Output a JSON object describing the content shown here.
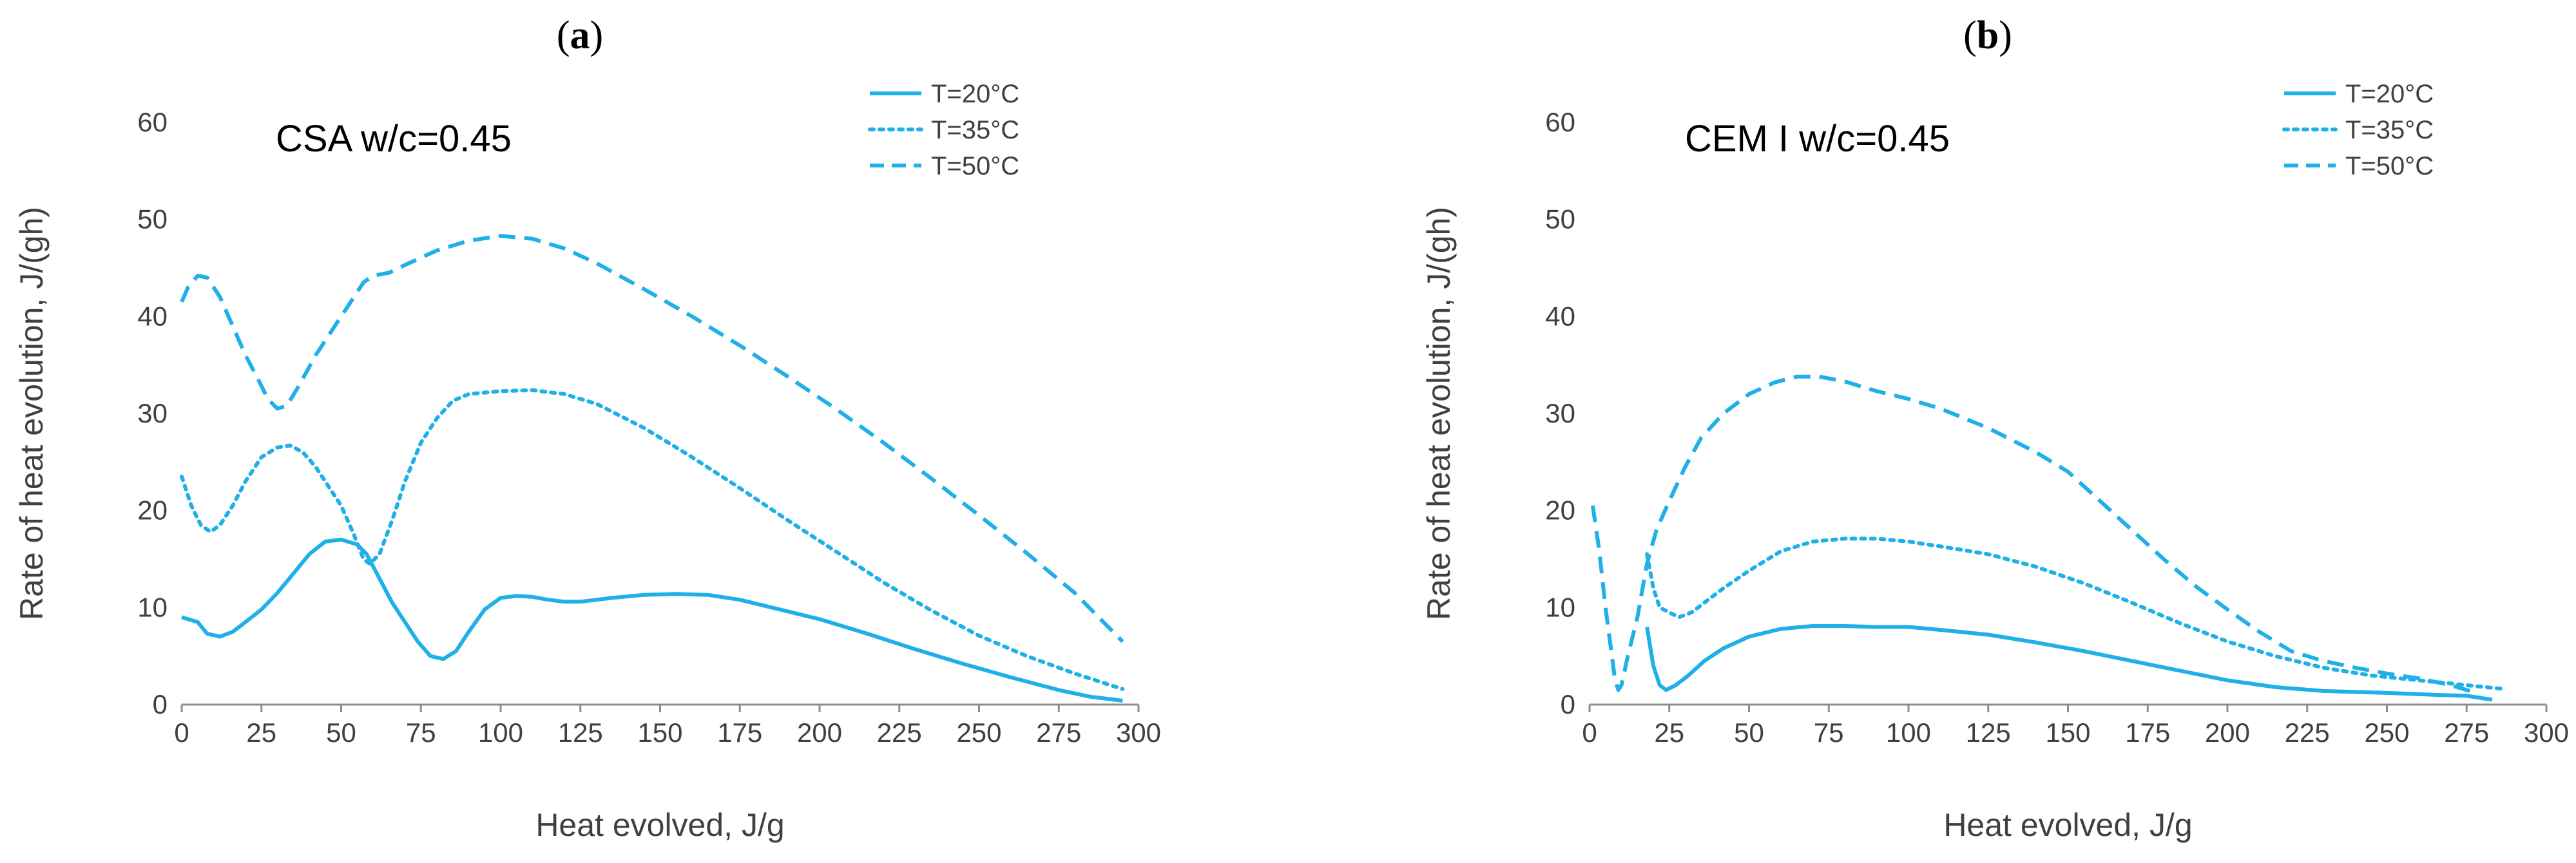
{
  "chart_data": [
    {
      "type": "line",
      "panel_label": "a",
      "title": "CSA w/c=0.45",
      "xlabel": "Heat evolved, J/g",
      "ylabel": "Rate of heat evolution, J/(gh)",
      "xlim": [
        0,
        300
      ],
      "ylim": [
        0,
        60
      ],
      "xticks": [
        0,
        25,
        50,
        75,
        100,
        125,
        150,
        175,
        200,
        225,
        250,
        275,
        300
      ],
      "yticks": [
        0,
        10,
        20,
        30,
        40,
        50,
        60
      ],
      "legend_position": "top-right",
      "color": "#1fb0e8",
      "series": [
        {
          "name": "T=20°C",
          "style": "solid",
          "points": [
            [
              0,
              9.0
            ],
            [
              5,
              8.5
            ],
            [
              8,
              7.3
            ],
            [
              12,
              7.0
            ],
            [
              16,
              7.5
            ],
            [
              20,
              8.5
            ],
            [
              25,
              9.8
            ],
            [
              30,
              11.5
            ],
            [
              35,
              13.5
            ],
            [
              40,
              15.5
            ],
            [
              45,
              16.8
            ],
            [
              50,
              17.0
            ],
            [
              55,
              16.5
            ],
            [
              58,
              15.5
            ],
            [
              62,
              13.0
            ],
            [
              66,
              10.5
            ],
            [
              70,
              8.5
            ],
            [
              74,
              6.5
            ],
            [
              78,
              5.0
            ],
            [
              82,
              4.7
            ],
            [
              86,
              5.5
            ],
            [
              90,
              7.5
            ],
            [
              95,
              9.8
            ],
            [
              100,
              11.0
            ],
            [
              105,
              11.2
            ],
            [
              110,
              11.1
            ],
            [
              115,
              10.8
            ],
            [
              120,
              10.6
            ],
            [
              125,
              10.6
            ],
            [
              135,
              11.0
            ],
            [
              145,
              11.3
            ],
            [
              155,
              11.4
            ],
            [
              165,
              11.3
            ],
            [
              175,
              10.8
            ],
            [
              185,
              10.0
            ],
            [
              200,
              8.8
            ],
            [
              215,
              7.3
            ],
            [
              230,
              5.7
            ],
            [
              245,
              4.2
            ],
            [
              260,
              2.8
            ],
            [
              275,
              1.5
            ],
            [
              285,
              0.8
            ],
            [
              295,
              0.4
            ]
          ]
        },
        {
          "name": "T=35°C",
          "style": "dotted",
          "points": [
            [
              0,
              23.5
            ],
            [
              3,
              20.5
            ],
            [
              6,
              18.5
            ],
            [
              9,
              17.8
            ],
            [
              12,
              18.5
            ],
            [
              16,
              20.5
            ],
            [
              20,
              23.0
            ],
            [
              25,
              25.5
            ],
            [
              30,
              26.5
            ],
            [
              34,
              26.7
            ],
            [
              38,
              26.0
            ],
            [
              42,
              24.5
            ],
            [
              46,
              22.5
            ],
            [
              50,
              20.5
            ],
            [
              54,
              17.5
            ],
            [
              57,
              15.0
            ],
            [
              59,
              14.5
            ],
            [
              62,
              15.5
            ],
            [
              66,
              19.0
            ],
            [
              70,
              23.0
            ],
            [
              75,
              27.0
            ],
            [
              80,
              29.5
            ],
            [
              85,
              31.3
            ],
            [
              90,
              32.0
            ],
            [
              100,
              32.3
            ],
            [
              110,
              32.4
            ],
            [
              120,
              32.0
            ],
            [
              130,
              31.0
            ],
            [
              145,
              28.5
            ],
            [
              160,
              25.5
            ],
            [
              175,
              22.3
            ],
            [
              190,
              19.0
            ],
            [
              205,
              15.8
            ],
            [
              220,
              12.6
            ],
            [
              235,
              9.7
            ],
            [
              250,
              7.1
            ],
            [
              265,
              5.0
            ],
            [
              280,
              3.2
            ],
            [
              295,
              1.6
            ]
          ]
        },
        {
          "name": "T=50°C",
          "style": "dashed",
          "points": [
            [
              0,
              41.5
            ],
            [
              2,
              43.0
            ],
            [
              5,
              44.2
            ],
            [
              8,
              44.0
            ],
            [
              12,
              42.0
            ],
            [
              16,
              39.0
            ],
            [
              20,
              36.0
            ],
            [
              24,
              33.5
            ],
            [
              27,
              31.5
            ],
            [
              30,
              30.5
            ],
            [
              33,
              30.8
            ],
            [
              37,
              33.0
            ],
            [
              42,
              36.0
            ],
            [
              48,
              39.0
            ],
            [
              53,
              41.5
            ],
            [
              57,
              43.5
            ],
            [
              60,
              44.2
            ],
            [
              65,
              44.5
            ],
            [
              70,
              45.3
            ],
            [
              80,
              46.8
            ],
            [
              90,
              47.8
            ],
            [
              100,
              48.3
            ],
            [
              110,
              48.0
            ],
            [
              120,
              47.0
            ],
            [
              130,
              45.5
            ],
            [
              145,
              42.8
            ],
            [
              160,
              40.0
            ],
            [
              175,
              37.0
            ],
            [
              190,
              33.8
            ],
            [
              205,
              30.5
            ],
            [
              220,
              27.0
            ],
            [
              235,
              23.3
            ],
            [
              250,
              19.5
            ],
            [
              265,
              15.6
            ],
            [
              280,
              11.5
            ],
            [
              295,
              6.5
            ]
          ]
        }
      ]
    },
    {
      "type": "line",
      "panel_label": "b",
      "title": "CEM I w/c=0.45",
      "xlabel": "Heat evolved, J/g",
      "ylabel": "Rate of heat evolution, J/(gh)",
      "xlim": [
        0,
        300
      ],
      "ylim": [
        0,
        60
      ],
      "xticks": [
        0,
        25,
        50,
        75,
        100,
        125,
        150,
        175,
        200,
        225,
        250,
        275,
        300
      ],
      "yticks": [
        0,
        10,
        20,
        30,
        40,
        50,
        60
      ],
      "legend_position": "top-right",
      "color": "#1fb0e8",
      "series": [
        {
          "name": "T=20°C",
          "style": "solid",
          "points": [
            [
              18,
              8.0
            ],
            [
              20,
              4.0
            ],
            [
              22,
              2.0
            ],
            [
              24,
              1.5
            ],
            [
              27,
              2.0
            ],
            [
              31,
              3.0
            ],
            [
              36,
              4.5
            ],
            [
              42,
              5.8
            ],
            [
              50,
              7.0
            ],
            [
              60,
              7.8
            ],
            [
              70,
              8.1
            ],
            [
              80,
              8.1
            ],
            [
              90,
              8.0
            ],
            [
              100,
              8.0
            ],
            [
              110,
              7.7
            ],
            [
              125,
              7.2
            ],
            [
              140,
              6.4
            ],
            [
              155,
              5.5
            ],
            [
              170,
              4.5
            ],
            [
              185,
              3.5
            ],
            [
              200,
              2.5
            ],
            [
              215,
              1.8
            ],
            [
              230,
              1.4
            ],
            [
              250,
              1.2
            ],
            [
              265,
              1.0
            ],
            [
              275,
              0.9
            ],
            [
              283,
              0.5
            ]
          ]
        },
        {
          "name": "T=35°C",
          "style": "dotted",
          "points": [
            [
              18,
              15.5
            ],
            [
              20,
              12.0
            ],
            [
              22,
              10.0
            ],
            [
              25,
              9.5
            ],
            [
              28,
              9.0
            ],
            [
              32,
              9.5
            ],
            [
              36,
              10.5
            ],
            [
              42,
              12.0
            ],
            [
              50,
              13.8
            ],
            [
              60,
              15.8
            ],
            [
              70,
              16.8
            ],
            [
              80,
              17.1
            ],
            [
              90,
              17.1
            ],
            [
              100,
              16.8
            ],
            [
              110,
              16.3
            ],
            [
              125,
              15.5
            ],
            [
              140,
              14.2
            ],
            [
              155,
              12.5
            ],
            [
              170,
              10.5
            ],
            [
              185,
              8.4
            ],
            [
              200,
              6.5
            ],
            [
              215,
              5.0
            ],
            [
              230,
              3.8
            ],
            [
              245,
              3.0
            ],
            [
              260,
              2.5
            ],
            [
              275,
              2.0
            ],
            [
              287,
              1.6
            ]
          ]
        },
        {
          "name": "T=50°C",
          "style": "dashed",
          "points": [
            [
              1,
              20.5
            ],
            [
              3,
              16.0
            ],
            [
              5,
              10.0
            ],
            [
              7,
              5.0
            ],
            [
              8,
              2.5
            ],
            [
              9,
              1.5
            ],
            [
              10,
              2.0
            ],
            [
              12,
              5.0
            ],
            [
              15,
              9.0
            ],
            [
              18,
              14.5
            ],
            [
              21,
              18.0
            ],
            [
              25,
              21.0
            ],
            [
              30,
              24.5
            ],
            [
              35,
              27.5
            ],
            [
              42,
              30.0
            ],
            [
              50,
              32.0
            ],
            [
              58,
              33.2
            ],
            [
              65,
              33.8
            ],
            [
              72,
              33.8
            ],
            [
              80,
              33.3
            ],
            [
              90,
              32.3
            ],
            [
              100,
              31.5
            ],
            [
              110,
              30.5
            ],
            [
              125,
              28.5
            ],
            [
              140,
              26.0
            ],
            [
              150,
              24.0
            ],
            [
              160,
              21.0
            ],
            [
              170,
              18.0
            ],
            [
              180,
              15.0
            ],
            [
              190,
              12.2
            ],
            [
              200,
              9.8
            ],
            [
              210,
              7.5
            ],
            [
              220,
              5.5
            ],
            [
              230,
              4.5
            ],
            [
              240,
              3.8
            ],
            [
              250,
              3.2
            ],
            [
              260,
              2.7
            ],
            [
              270,
              2.0
            ],
            [
              278,
              1.2
            ]
          ]
        }
      ]
    }
  ]
}
